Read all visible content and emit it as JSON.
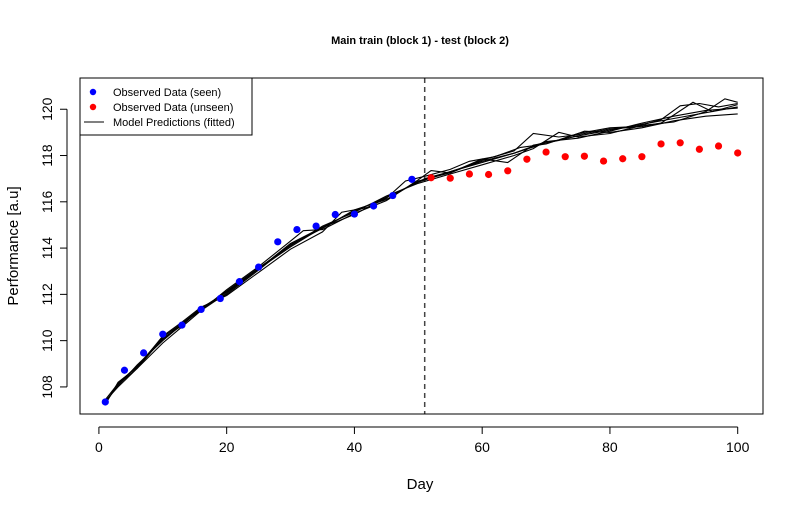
{
  "chart_data": {
    "type": "scatter",
    "title": "Main train (block 1) - test (block 2)",
    "xlabel": "Day",
    "ylabel": "Performance [a.u]",
    "xlim": [
      -2.96,
      103.96
    ],
    "ylim": [
      106.83,
      121.35
    ],
    "x_ticks": [
      0,
      20,
      40,
      60,
      80,
      100
    ],
    "x_tick_labels": [
      "0",
      "20",
      "40",
      "60",
      "80",
      "100"
    ],
    "y_ticks": [
      108,
      110,
      112,
      114,
      116,
      118,
      120
    ],
    "y_tick_labels": [
      "108",
      "110",
      "112",
      "114",
      "116",
      "118",
      "120"
    ],
    "grid": false,
    "legend_position": "top-left",
    "vline": {
      "x": 51,
      "style": "dashed",
      "color": "#444444"
    },
    "series": [
      {
        "name": "Observed Data (seen)",
        "kind": "points",
        "color": "#0000ff",
        "points": [
          [
            1,
            107.35
          ],
          [
            4,
            108.72
          ],
          [
            7,
            109.47
          ],
          [
            10,
            110.28
          ],
          [
            13,
            110.67
          ],
          [
            16,
            111.35
          ],
          [
            19,
            111.82
          ],
          [
            22,
            112.55
          ],
          [
            25,
            113.18
          ],
          [
            28,
            114.27
          ],
          [
            31,
            114.8
          ],
          [
            34,
            114.95
          ],
          [
            37,
            115.45
          ],
          [
            40,
            115.47
          ],
          [
            43,
            115.82
          ],
          [
            46,
            116.27
          ],
          [
            49,
            116.97
          ]
        ]
      },
      {
        "name": "Observed Data (unseen)",
        "kind": "points",
        "color": "#ff0000",
        "points": [
          [
            52,
            117.04
          ],
          [
            55,
            117.02
          ],
          [
            58,
            117.2
          ],
          [
            61,
            117.18
          ],
          [
            64,
            117.34
          ],
          [
            67,
            117.84
          ],
          [
            70,
            118.15
          ],
          [
            73,
            117.95
          ],
          [
            76,
            117.97
          ],
          [
            79,
            117.76
          ],
          [
            82,
            117.86
          ],
          [
            85,
            117.95
          ],
          [
            88,
            118.5
          ],
          [
            91,
            118.55
          ],
          [
            94,
            118.27
          ],
          [
            97,
            118.41
          ],
          [
            100,
            118.11
          ]
        ]
      },
      {
        "name": "Model Predictions (fitted)",
        "kind": "lines",
        "color": "#000000",
        "lines": [
          [
            [
              1,
              107.3
            ],
            [
              3,
              108.15
            ],
            [
              6,
              108.9
            ],
            [
              10,
              110.05
            ],
            [
              13,
              110.75
            ],
            [
              16,
              111.4
            ],
            [
              20,
              112.1
            ],
            [
              25,
              113.1
            ],
            [
              30,
              114.05
            ],
            [
              35,
              114.9
            ],
            [
              40,
              115.6
            ],
            [
              45,
              116.2
            ],
            [
              50,
              116.85
            ],
            [
              51,
              117.0
            ],
            [
              55,
              117.3
            ],
            [
              60,
              117.75
            ],
            [
              65,
              118.1
            ],
            [
              70,
              118.55
            ],
            [
              75,
              118.85
            ],
            [
              80,
              119.1
            ],
            [
              85,
              119.35
            ],
            [
              90,
              119.6
            ],
            [
              95,
              119.85
            ],
            [
              100,
              120.1
            ]
          ],
          [
            [
              1,
              107.4
            ],
            [
              3,
              108.0
            ],
            [
              6,
              108.8
            ],
            [
              10,
              109.9
            ],
            [
              13,
              110.6
            ],
            [
              16,
              111.3
            ],
            [
              20,
              112.2
            ],
            [
              25,
              113.2
            ],
            [
              30,
              114.3
            ],
            [
              32,
              114.75
            ],
            [
              35,
              114.8
            ],
            [
              40,
              115.5
            ],
            [
              45,
              116.05
            ],
            [
              50,
              116.95
            ],
            [
              52,
              117.35
            ],
            [
              55,
              117.25
            ],
            [
              60,
              117.8
            ],
            [
              65,
              118.2
            ],
            [
              68,
              118.95
            ],
            [
              72,
              118.8
            ],
            [
              75,
              118.9
            ],
            [
              80,
              119.15
            ],
            [
              85,
              119.25
            ],
            [
              88,
              119.4
            ],
            [
              90,
              119.75
            ],
            [
              93,
              120.3
            ],
            [
              96,
              119.9
            ],
            [
              100,
              120.2
            ]
          ],
          [
            [
              1,
              107.25
            ],
            [
              3,
              108.2
            ],
            [
              6,
              108.85
            ],
            [
              10,
              110.2
            ],
            [
              13,
              110.8
            ],
            [
              16,
              111.45
            ],
            [
              20,
              111.95
            ],
            [
              25,
              112.95
            ],
            [
              30,
              113.95
            ],
            [
              35,
              114.7
            ],
            [
              38,
              115.55
            ],
            [
              42,
              115.75
            ],
            [
              45,
              116.15
            ],
            [
              48,
              116.9
            ],
            [
              51,
              117.1
            ],
            [
              55,
              117.4
            ],
            [
              58,
              117.75
            ],
            [
              62,
              117.95
            ],
            [
              66,
              118.35
            ],
            [
              70,
              118.5
            ],
            [
              75,
              118.95
            ],
            [
              80,
              119.2
            ],
            [
              84,
              119.25
            ],
            [
              88,
              119.55
            ],
            [
              91,
              120.15
            ],
            [
              94,
              120.25
            ],
            [
              97,
              120.1
            ],
            [
              100,
              120.25
            ]
          ],
          [
            [
              1,
              107.35
            ],
            [
              3,
              108.05
            ],
            [
              6,
              108.95
            ],
            [
              10,
              110.0
            ],
            [
              13,
              110.7
            ],
            [
              16,
              111.35
            ],
            [
              20,
              112.15
            ],
            [
              25,
              113.15
            ],
            [
              30,
              114.1
            ],
            [
              35,
              114.95
            ],
            [
              40,
              115.55
            ],
            [
              45,
              116.25
            ],
            [
              50,
              116.8
            ],
            [
              55,
              117.2
            ],
            [
              60,
              117.6
            ],
            [
              65,
              118.0
            ],
            [
              68,
              118.3
            ],
            [
              72,
              119.0
            ],
            [
              75,
              118.8
            ],
            [
              80,
              118.95
            ],
            [
              85,
              119.3
            ],
            [
              90,
              119.45
            ],
            [
              95,
              119.9
            ],
            [
              98,
              120.45
            ],
            [
              100,
              120.3
            ]
          ],
          [
            [
              1,
              107.3
            ],
            [
              3,
              108.1
            ],
            [
              6,
              108.8
            ],
            [
              10,
              110.1
            ],
            [
              13,
              110.65
            ],
            [
              16,
              111.4
            ],
            [
              20,
              112.0
            ],
            [
              25,
              113.05
            ],
            [
              30,
              114.15
            ],
            [
              35,
              114.85
            ],
            [
              40,
              115.65
            ],
            [
              45,
              116.1
            ],
            [
              50,
              116.9
            ],
            [
              55,
              117.25
            ],
            [
              60,
              117.85
            ],
            [
              64,
              117.7
            ],
            [
              68,
              118.45
            ],
            [
              72,
              118.65
            ],
            [
              76,
              119.05
            ],
            [
              80,
              119.0
            ],
            [
              85,
              119.2
            ],
            [
              90,
              119.5
            ],
            [
              95,
              119.7
            ],
            [
              100,
              119.8
            ]
          ],
          [
            [
              1,
              107.45
            ],
            [
              3,
              108.15
            ],
            [
              6,
              108.9
            ],
            [
              10,
              110.15
            ],
            [
              13,
              110.75
            ],
            [
              16,
              111.3
            ],
            [
              20,
              112.05
            ],
            [
              25,
              113.1
            ],
            [
              30,
              114.2
            ],
            [
              35,
              114.9
            ],
            [
              40,
              115.45
            ],
            [
              45,
              116.2
            ],
            [
              50,
              116.85
            ],
            [
              55,
              117.3
            ],
            [
              60,
              117.7
            ],
            [
              65,
              118.1
            ],
            [
              70,
              118.6
            ],
            [
              75,
              118.75
            ],
            [
              80,
              119.05
            ],
            [
              85,
              119.4
            ],
            [
              90,
              119.7
            ],
            [
              95,
              119.95
            ],
            [
              100,
              120.05
            ]
          ]
        ]
      }
    ]
  }
}
